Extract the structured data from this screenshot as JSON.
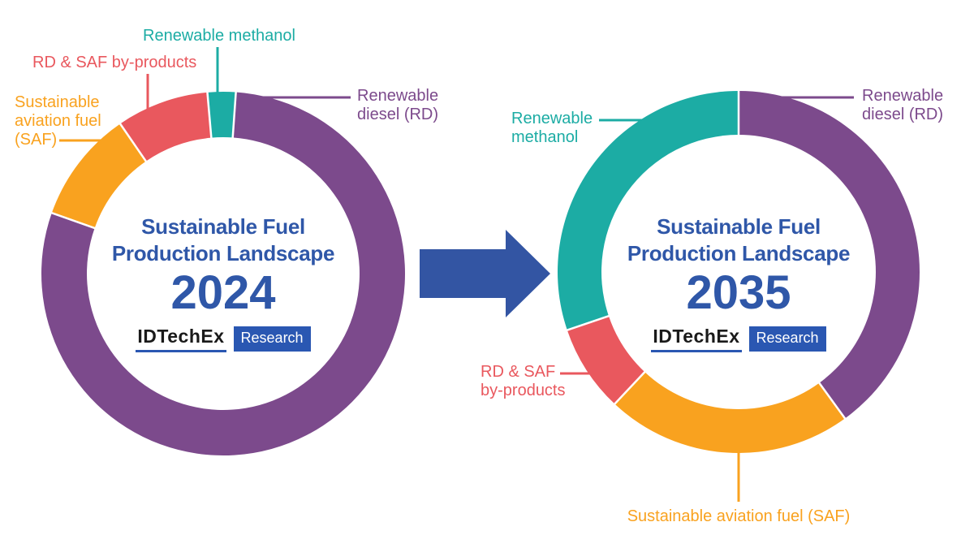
{
  "colors": {
    "purple": "#7C4A8C",
    "teal": "#1CACA4",
    "red": "#E9585E",
    "orange": "#F9A21F",
    "title_blue": "#2F57A8",
    "badge_blue": "#2A57B2",
    "arrow_blue": "#3355A3",
    "brand_text": "#1A1A1A",
    "background": "#FFFFFF"
  },
  "logo": {
    "brand": "IDTechEx",
    "badge": "Research"
  },
  "charts": [
    {
      "title_line1": "Sustainable Fuel",
      "title_line2": "Production Landscape",
      "year": "2024"
    },
    {
      "title_line1": "Sustainable Fuel",
      "title_line2": "Production Landscape",
      "year": "2035"
    }
  ],
  "labels_2024": {
    "methanol": "Renewable methanol",
    "byproducts": "RD & SAF by-products",
    "saf_line1": "Sustainable",
    "saf_line2": "aviation fuel",
    "saf_line3": "(SAF)",
    "rd_line1": "Renewable",
    "rd_line2": "diesel (RD)"
  },
  "labels_2035": {
    "methanol_line1": "Renewable",
    "methanol_line2": "methanol",
    "byproducts_line1": "RD & SAF",
    "byproducts_line2": "by-products",
    "rd_line1": "Renewable",
    "rd_line2": "diesel (RD)",
    "saf": "Sustainable aviation fuel (SAF)"
  },
  "chart_data": [
    {
      "type": "pie",
      "subtype": "donut",
      "title": "Sustainable Fuel Production Landscape 2024",
      "start_angle_deg": -5,
      "direction": "clockwise",
      "legend_position": "callout-labels",
      "segments": [
        {
          "label": "Renewable methanol",
          "percent": 2.5,
          "color_key": "teal"
        },
        {
          "label": "Renewable diesel (RD)",
          "percent": 79.3,
          "color_key": "purple"
        },
        {
          "label": "Sustainable aviation fuel (SAF)",
          "percent": 10.0,
          "color_key": "orange"
        },
        {
          "label": "RD & SAF by-products",
          "percent": 8.2,
          "color_key": "red"
        }
      ]
    },
    {
      "type": "pie",
      "subtype": "donut",
      "title": "Sustainable Fuel Production Landscape 2035",
      "start_angle_deg": 0,
      "direction": "clockwise",
      "legend_position": "callout-labels",
      "segments": [
        {
          "label": "Renewable diesel (RD)",
          "percent": 40.0,
          "color_key": "purple"
        },
        {
          "label": "Sustainable aviation fuel (SAF)",
          "percent": 22.0,
          "color_key": "orange"
        },
        {
          "label": "RD & SAF by-products",
          "percent": 7.8,
          "color_key": "red"
        },
        {
          "label": "Renewable methanol",
          "percent": 30.2,
          "color_key": "teal"
        }
      ]
    }
  ]
}
